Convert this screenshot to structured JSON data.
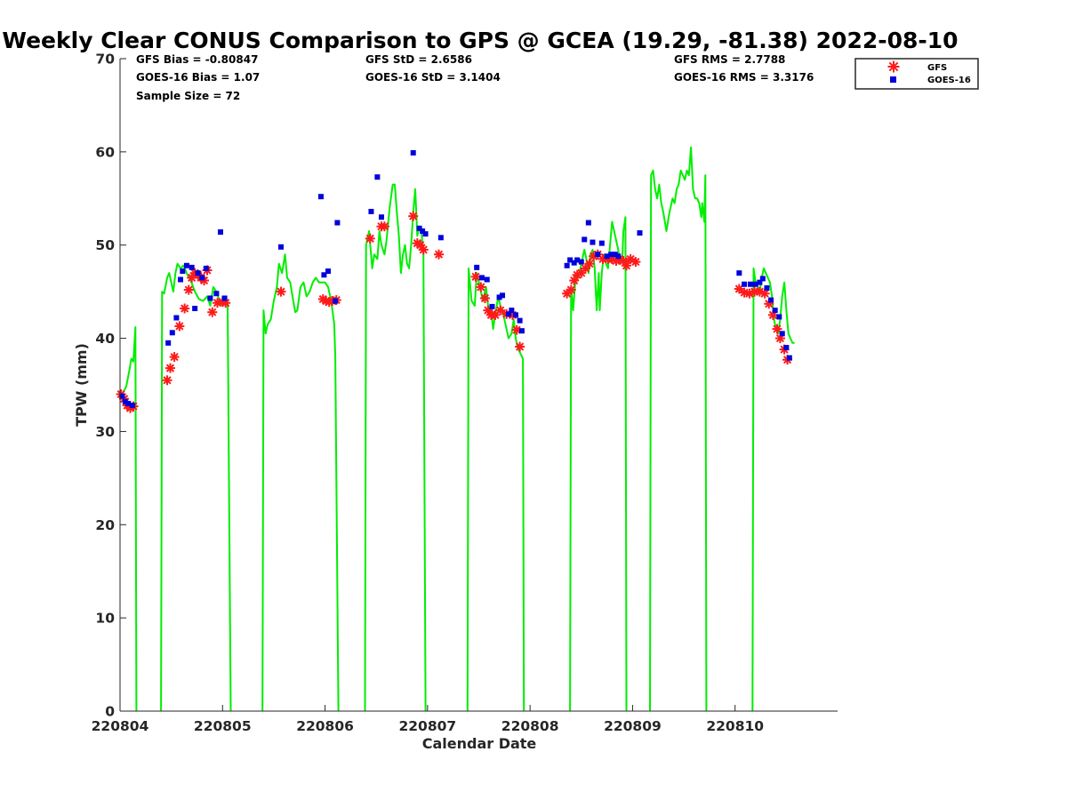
{
  "chart_data": {
    "type": "scatter",
    "title": "Weekly Clear CONUS Comparison to GPS @ GCEA (19.29, -81.38) 2022-08-10",
    "xlabel": "Calendar Date",
    "ylabel": "TPW (mm)",
    "xlim": [
      220804,
      220811
    ],
    "ylim": [
      0,
      70
    ],
    "x_tick_labels": [
      "220804",
      "220805",
      "220806",
      "220807",
      "220808",
      "220809",
      "220810"
    ],
    "y_tick_labels": [
      "0",
      "10",
      "20",
      "30",
      "40",
      "50",
      "60",
      "70"
    ],
    "grid": false,
    "legend_position": "top-right",
    "stats": {
      "gfs_bias": "GFS Bias = -0.80847",
      "goes_bias": "GOES-16 Bias = 1.07",
      "sample_size": "Sample Size = 72",
      "gfs_std": "GFS StD = 2.6586",
      "goes_std": "GOES-16 StD = 3.1404",
      "gfs_rms": "GFS RMS = 2.7788",
      "goes_rms": "GOES-16 RMS = 3.3176"
    },
    "colors": {
      "gps_line": "#00ee00",
      "gfs": "#ff1a1a",
      "goes": "#0000dd"
    },
    "legend": [
      {
        "label": "GFS",
        "marker": "asterisk",
        "color": "#ff1a1a"
      },
      {
        "label": "GOES-16",
        "marker": "square",
        "color": "#0000dd"
      }
    ],
    "gps_segments": [
      [
        [
          0.0,
          33.5
        ],
        [
          0.03,
          34.2
        ],
        [
          0.06,
          34.8
        ],
        [
          0.09,
          36.5
        ],
        [
          0.11,
          37.8
        ],
        [
          0.13,
          37.5
        ],
        [
          0.15,
          41.2
        ],
        [
          0.16,
          0
        ]
      ],
      [
        [
          0.4,
          0
        ],
        [
          0.41,
          45.0
        ],
        [
          0.43,
          44.8
        ],
        [
          0.46,
          46.5
        ],
        [
          0.48,
          47.0
        ],
        [
          0.5,
          46.0
        ],
        [
          0.52,
          45.0
        ],
        [
          0.54,
          47.0
        ],
        [
          0.56,
          48.0
        ],
        [
          0.59,
          47.5
        ],
        [
          0.62,
          47.8
        ],
        [
          0.65,
          47.0
        ],
        [
          0.69,
          46.2
        ],
        [
          0.73,
          45.0
        ],
        [
          0.77,
          44.2
        ],
        [
          0.81,
          44.0
        ],
        [
          0.85,
          44.5
        ],
        [
          0.88,
          43.5
        ],
        [
          0.91,
          45.5
        ],
        [
          0.94,
          45.0
        ],
        [
          0.97,
          44.0
        ],
        [
          1.0,
          43.5
        ],
        [
          1.03,
          44.2
        ],
        [
          1.05,
          43.8
        ],
        [
          1.08,
          0
        ]
      ],
      [
        [
          1.39,
          0
        ],
        [
          1.4,
          43.0
        ],
        [
          1.42,
          40.5
        ],
        [
          1.44,
          41.5
        ],
        [
          1.47,
          42.0
        ],
        [
          1.5,
          44.0
        ],
        [
          1.53,
          45.5
        ],
        [
          1.55,
          48.0
        ],
        [
          1.58,
          47.0
        ],
        [
          1.61,
          49.0
        ],
        [
          1.63,
          46.5
        ],
        [
          1.66,
          46.0
        ],
        [
          1.69,
          44.0
        ],
        [
          1.71,
          42.8
        ],
        [
          1.73,
          43.0
        ],
        [
          1.76,
          45.5
        ],
        [
          1.79,
          46.0
        ],
        [
          1.82,
          44.5
        ],
        [
          1.85,
          45.0
        ],
        [
          1.88,
          46.0
        ],
        [
          1.91,
          46.5
        ],
        [
          1.94,
          46.0
        ],
        [
          1.97,
          46.0
        ],
        [
          2.0,
          46.0
        ],
        [
          2.03,
          45.5
        ],
        [
          2.06,
          44.0
        ],
        [
          2.09,
          41.5
        ],
        [
          2.1,
          38.0
        ],
        [
          2.13,
          0
        ]
      ],
      [
        [
          2.39,
          0
        ],
        [
          2.4,
          50.0
        ],
        [
          2.43,
          51.5
        ],
        [
          2.46,
          47.5
        ],
        [
          2.48,
          49.0
        ],
        [
          2.51,
          48.5
        ],
        [
          2.53,
          51.5
        ],
        [
          2.55,
          50.0
        ],
        [
          2.58,
          49.0
        ],
        [
          2.6,
          50.5
        ],
        [
          2.63,
          54.0
        ],
        [
          2.66,
          56.5
        ],
        [
          2.68,
          56.5
        ],
        [
          2.7,
          53.5
        ],
        [
          2.72,
          51.0
        ],
        [
          2.74,
          47.0
        ],
        [
          2.76,
          49.0
        ],
        [
          2.78,
          50.0
        ],
        [
          2.8,
          48.0
        ],
        [
          2.82,
          47.5
        ],
        [
          2.84,
          50.0
        ],
        [
          2.86,
          53.5
        ],
        [
          2.88,
          56.0
        ],
        [
          2.9,
          51.0
        ],
        [
          2.92,
          52.0
        ],
        [
          2.94,
          51.5
        ],
        [
          2.96,
          49.0
        ],
        [
          2.98,
          0
        ]
      ],
      [
        [
          3.39,
          0
        ],
        [
          3.4,
          47.5
        ],
        [
          3.43,
          44.0
        ],
        [
          3.46,
          43.5
        ],
        [
          3.48,
          47.0
        ],
        [
          3.51,
          45.5
        ],
        [
          3.54,
          44.0
        ],
        [
          3.57,
          45.5
        ],
        [
          3.59,
          43.5
        ],
        [
          3.62,
          43.0
        ],
        [
          3.64,
          41.0
        ],
        [
          3.66,
          42.5
        ],
        [
          3.69,
          44.5
        ],
        [
          3.71,
          43.5
        ],
        [
          3.74,
          42.5
        ],
        [
          3.76,
          41.5
        ],
        [
          3.79,
          40.0
        ],
        [
          3.82,
          40.5
        ],
        [
          3.84,
          42.0
        ],
        [
          3.86,
          40.0
        ],
        [
          3.88,
          39.0
        ],
        [
          3.9,
          38.5
        ],
        [
          3.93,
          37.8
        ],
        [
          3.94,
          0
        ]
      ],
      [
        [
          4.39,
          0
        ],
        [
          4.4,
          45.5
        ],
        [
          4.42,
          43.0
        ],
        [
          4.44,
          46.0
        ],
        [
          4.47,
          46.5
        ],
        [
          4.5,
          48.0
        ],
        [
          4.53,
          49.5
        ],
        [
          4.55,
          48.5
        ],
        [
          4.57,
          47.0
        ],
        [
          4.59,
          49.0
        ],
        [
          4.61,
          49.5
        ],
        [
          4.63,
          47.5
        ],
        [
          4.65,
          43.0
        ],
        [
          4.67,
          47.0
        ],
        [
          4.68,
          43.0
        ],
        [
          4.7,
          47.0
        ],
        [
          4.72,
          49.0
        ],
        [
          4.74,
          48.0
        ],
        [
          4.76,
          47.5
        ],
        [
          4.78,
          50.0
        ],
        [
          4.8,
          52.5
        ],
        [
          4.82,
          51.5
        ],
        [
          4.84,
          50.5
        ],
        [
          4.86,
          49.5
        ],
        [
          4.88,
          48.0
        ],
        [
          4.9,
          48.5
        ],
        [
          4.91,
          51.5
        ],
        [
          4.93,
          53.0
        ],
        [
          4.94,
          0
        ]
      ],
      [
        [
          5.17,
          0
        ],
        [
          5.18,
          57.5
        ],
        [
          5.2,
          58.0
        ],
        [
          5.22,
          56.0
        ],
        [
          5.24,
          55.0
        ],
        [
          5.26,
          56.5
        ],
        [
          5.28,
          54.5
        ],
        [
          5.3,
          53.5
        ],
        [
          5.33,
          51.5
        ],
        [
          5.36,
          53.5
        ],
        [
          5.39,
          55.0
        ],
        [
          5.41,
          54.5
        ],
        [
          5.43,
          56.0
        ],
        [
          5.45,
          56.5
        ],
        [
          5.47,
          58.0
        ],
        [
          5.49,
          57.5
        ],
        [
          5.51,
          57.0
        ],
        [
          5.53,
          58.0
        ],
        [
          5.55,
          57.5
        ],
        [
          5.57,
          60.5
        ],
        [
          5.59,
          56.0
        ],
        [
          5.61,
          55.0
        ],
        [
          5.63,
          55.0
        ],
        [
          5.65,
          54.5
        ],
        [
          5.67,
          53.0
        ],
        [
          5.68,
          54.5
        ],
        [
          5.7,
          52.5
        ],
        [
          5.71,
          57.5
        ],
        [
          5.72,
          0
        ]
      ],
      [
        [
          6.17,
          0
        ],
        [
          6.18,
          47.5
        ],
        [
          6.2,
          46.0
        ],
        [
          6.22,
          45.5
        ],
        [
          6.24,
          45.0
        ],
        [
          6.26,
          46.5
        ],
        [
          6.28,
          47.5
        ],
        [
          6.3,
          47.0
        ],
        [
          6.32,
          46.5
        ],
        [
          6.34,
          46.0
        ],
        [
          6.36,
          44.5
        ],
        [
          6.38,
          42.0
        ],
        [
          6.4,
          41.0
        ],
        [
          6.42,
          40.5
        ],
        [
          6.44,
          42.0
        ],
        [
          6.46,
          44.5
        ],
        [
          6.48,
          46.0
        ],
        [
          6.5,
          43.0
        ],
        [
          6.52,
          40.5
        ],
        [
          6.54,
          40.0
        ],
        [
          6.56,
          39.5
        ],
        [
          6.58,
          39.5
        ]
      ]
    ],
    "gfs_points": [
      [
        0.01,
        34.0
      ],
      [
        0.04,
        33.5
      ],
      [
        0.07,
        32.8
      ],
      [
        0.1,
        32.5
      ],
      [
        0.13,
        32.7
      ],
      [
        0.46,
        35.5
      ],
      [
        0.49,
        36.8
      ],
      [
        0.53,
        38.0
      ],
      [
        0.58,
        41.3
      ],
      [
        0.63,
        43.2
      ],
      [
        0.67,
        45.2
      ],
      [
        0.7,
        46.5
      ],
      [
        0.73,
        47.0
      ],
      [
        0.76,
        46.8
      ],
      [
        0.79,
        46.5
      ],
      [
        0.82,
        46.2
      ],
      [
        0.85,
        47.3
      ],
      [
        0.9,
        42.8
      ],
      [
        0.95,
        43.8
      ],
      [
        1.0,
        43.9
      ],
      [
        1.03,
        43.8
      ],
      [
        1.57,
        45.0
      ],
      [
        1.98,
        44.2
      ],
      [
        2.01,
        44.0
      ],
      [
        2.04,
        43.9
      ],
      [
        2.07,
        44.0
      ],
      [
        2.11,
        44.1
      ],
      [
        2.44,
        50.7
      ],
      [
        2.55,
        52.0
      ],
      [
        2.58,
        52.0
      ],
      [
        2.86,
        53.1
      ],
      [
        2.9,
        50.2
      ],
      [
        2.93,
        50.0
      ],
      [
        2.96,
        49.5
      ],
      [
        3.11,
        49.0
      ],
      [
        3.47,
        46.6
      ],
      [
        3.52,
        45.5
      ],
      [
        3.56,
        44.3
      ],
      [
        3.59,
        43.0
      ],
      [
        3.62,
        42.5
      ],
      [
        3.66,
        42.5
      ],
      [
        3.71,
        43.0
      ],
      [
        3.77,
        42.6
      ],
      [
        3.83,
        42.5
      ],
      [
        3.87,
        40.9
      ],
      [
        3.9,
        39.1
      ],
      [
        4.36,
        44.8
      ],
      [
        4.4,
        45.2
      ],
      [
        4.43,
        46.2
      ],
      [
        4.46,
        46.8
      ],
      [
        4.5,
        47.0
      ],
      [
        4.54,
        47.5
      ],
      [
        4.58,
        48.0
      ],
      [
        4.62,
        48.8
      ],
      [
        4.66,
        49.0
      ],
      [
        4.71,
        48.5
      ],
      [
        4.76,
        48.5
      ],
      [
        4.8,
        48.5
      ],
      [
        4.84,
        48.3
      ],
      [
        4.87,
        48.5
      ],
      [
        4.91,
        48.3
      ],
      [
        4.94,
        47.8
      ],
      [
        4.98,
        48.5
      ],
      [
        5.03,
        48.2
      ],
      [
        6.04,
        45.3
      ],
      [
        6.09,
        44.9
      ],
      [
        6.14,
        44.8
      ],
      [
        6.19,
        45.0
      ],
      [
        6.24,
        45.0
      ],
      [
        6.29,
        44.8
      ],
      [
        6.33,
        43.7
      ],
      [
        6.37,
        42.5
      ],
      [
        6.41,
        41.0
      ],
      [
        6.44,
        40.0
      ],
      [
        6.48,
        38.8
      ],
      [
        6.51,
        37.7
      ]
    ],
    "goes_points": [
      [
        0.02,
        33.8
      ],
      [
        0.05,
        33.2
      ],
      [
        0.08,
        33.0
      ],
      [
        0.12,
        32.8
      ],
      [
        0.47,
        39.5
      ],
      [
        0.51,
        40.6
      ],
      [
        0.55,
        42.2
      ],
      [
        0.59,
        46.3
      ],
      [
        0.61,
        47.2
      ],
      [
        0.65,
        47.8
      ],
      [
        0.7,
        47.6
      ],
      [
        0.73,
        43.2
      ],
      [
        0.76,
        47.0
      ],
      [
        0.8,
        46.5
      ],
      [
        0.84,
        47.5
      ],
      [
        0.88,
        44.3
      ],
      [
        0.94,
        44.8
      ],
      [
        0.98,
        51.4
      ],
      [
        1.02,
        44.3
      ],
      [
        1.57,
        49.8
      ],
      [
        1.96,
        55.2
      ],
      [
        1.99,
        46.8
      ],
      [
        2.03,
        47.2
      ],
      [
        2.12,
        52.4
      ],
      [
        2.1,
        44.0
      ],
      [
        2.45,
        53.6
      ],
      [
        2.51,
        57.3
      ],
      [
        2.55,
        53.0
      ],
      [
        2.86,
        59.9
      ],
      [
        2.92,
        51.8
      ],
      [
        2.95,
        51.5
      ],
      [
        2.98,
        51.2
      ],
      [
        3.13,
        50.8
      ],
      [
        3.48,
        47.6
      ],
      [
        3.53,
        46.5
      ],
      [
        3.58,
        46.3
      ],
      [
        3.63,
        43.4
      ],
      [
        3.7,
        44.4
      ],
      [
        3.73,
        44.6
      ],
      [
        3.79,
        42.6
      ],
      [
        3.82,
        43.0
      ],
      [
        3.86,
        42.5
      ],
      [
        3.9,
        41.9
      ],
      [
        3.92,
        40.8
      ],
      [
        4.36,
        47.8
      ],
      [
        4.39,
        48.4
      ],
      [
        4.43,
        48.1
      ],
      [
        4.46,
        48.4
      ],
      [
        4.5,
        48.2
      ],
      [
        4.53,
        50.6
      ],
      [
        4.57,
        52.4
      ],
      [
        4.61,
        50.3
      ],
      [
        4.66,
        49.0
      ],
      [
        4.7,
        50.2
      ],
      [
        4.75,
        48.8
      ],
      [
        4.79,
        49.0
      ],
      [
        4.83,
        49.0
      ],
      [
        4.86,
        48.8
      ],
      [
        5.07,
        51.3
      ],
      [
        6.04,
        47.0
      ],
      [
        6.09,
        45.8
      ],
      [
        6.15,
        45.8
      ],
      [
        6.2,
        45.8
      ],
      [
        6.24,
        46.0
      ],
      [
        6.27,
        46.4
      ],
      [
        6.31,
        45.4
      ],
      [
        6.35,
        44.1
      ],
      [
        6.39,
        43.0
      ],
      [
        6.43,
        42.3
      ],
      [
        6.46,
        40.5
      ],
      [
        6.5,
        39.0
      ],
      [
        6.53,
        37.9
      ]
    ]
  }
}
